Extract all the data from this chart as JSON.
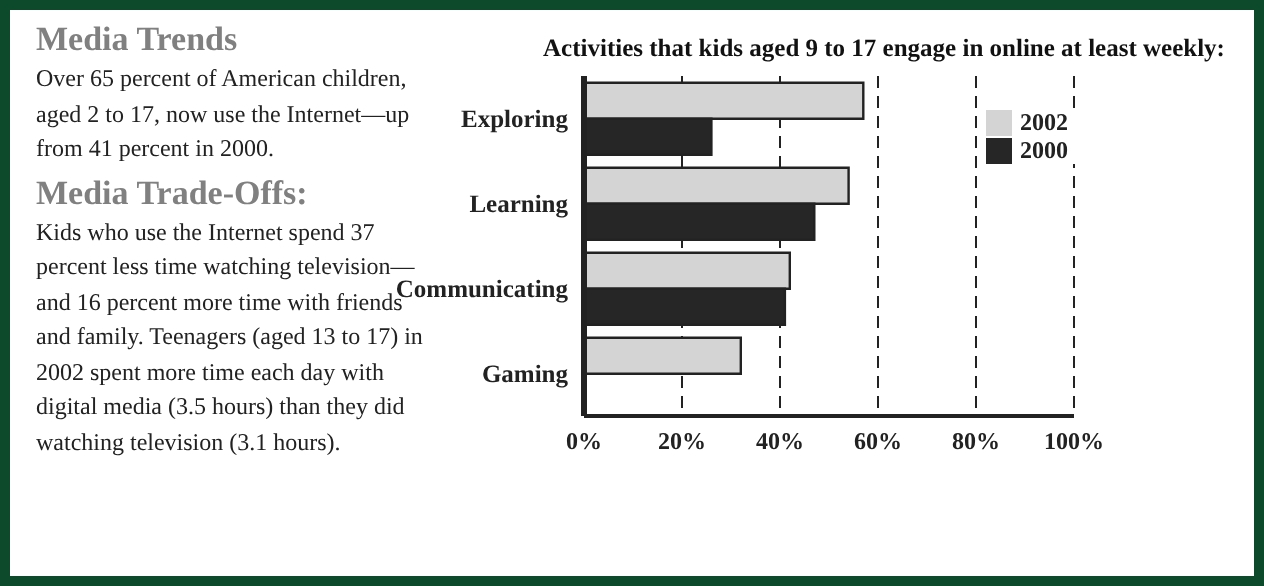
{
  "chart_data": [
    {
      "type": "other",
      "title": "Media Trends",
      "annotations": [
        "Over 65 percent of American children, aged 2 to 17, now use the Internet—up from 41 percent in 2000."
      ]
    },
    {
      "type": "other",
      "title": "Media Trade-Offs:",
      "annotations": [
        "Kids who use the Internet spend 37 percent less time watching television—and 16 percent more time with friends and family. Teenagers (aged 13 to 17) in 2002 spent more time each day with digital media (3.5 hours) than they did watching television (3.1 hours)."
      ]
    },
    {
      "type": "bar",
      "orientation": "horizontal",
      "title": "Activities that kids aged 9 to 17 engage in online at least weekly:",
      "categories": [
        "Exploring",
        "Learning",
        "Communicating",
        "Gaming"
      ],
      "series": [
        {
          "name": "2002",
          "color": "#d4d4d4",
          "values": [
            57,
            54,
            42,
            32
          ]
        },
        {
          "name": "2000",
          "color": "#262626",
          "values": [
            26,
            47,
            41,
            null
          ]
        }
      ],
      "xlim": [
        0,
        100
      ],
      "xticks": [
        {
          "value": 0,
          "label": "0%"
        },
        {
          "value": 20,
          "label": "20%"
        },
        {
          "value": 40,
          "label": "40%"
        },
        {
          "value": 60,
          "label": "60%"
        },
        {
          "value": 80,
          "label": "80%"
        },
        {
          "value": 100,
          "label": "100%"
        }
      ],
      "grid": "x",
      "legend": "top right"
    }
  ]
}
